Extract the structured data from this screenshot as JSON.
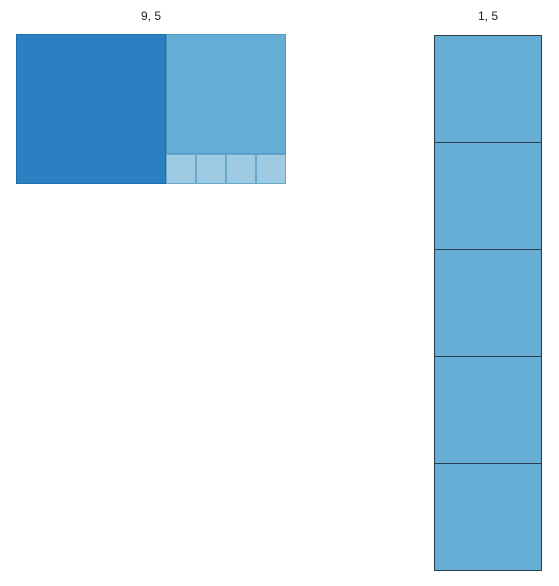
{
  "labels": {
    "left": "9, 5",
    "right": "1, 5"
  },
  "colors": {
    "dark_blue": "#2a80c0",
    "mid_blue": "#66aed6",
    "light_blue": "#9ecae3",
    "column_blue": "#66aed6",
    "outline_dark": "#2a3d4a"
  },
  "diagram": {
    "left_group": {
      "large_squares": 1,
      "medium_squares": 1,
      "small_squares": 4
    },
    "right_group": {
      "squares": 5
    }
  }
}
